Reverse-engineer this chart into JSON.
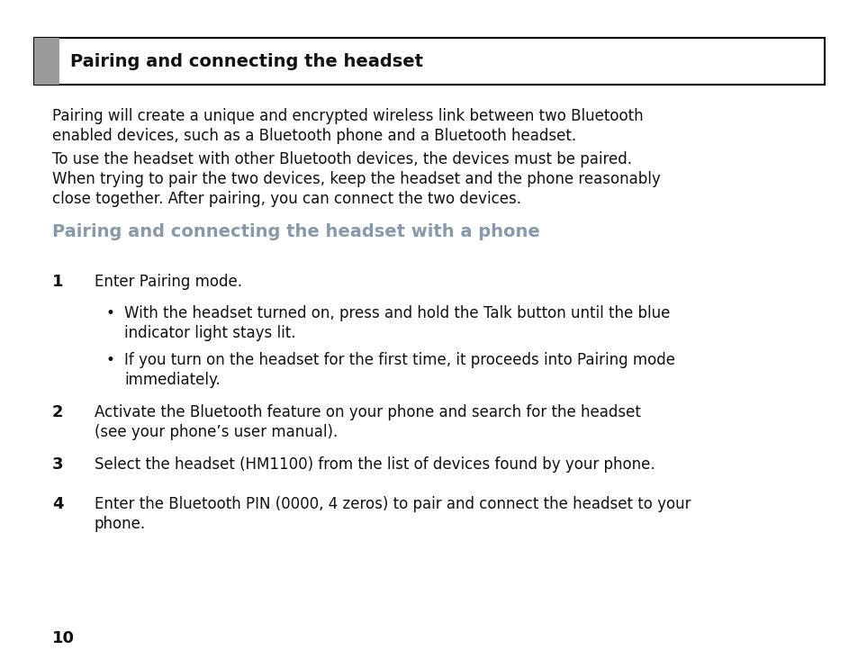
{
  "bg_color": "#ffffff",
  "header_box_color": "#ffffff",
  "header_box_border": "#000000",
  "header_gray_rect": "#999999",
  "header_title": "Pairing and connecting the headset",
  "header_title_fontsize": 14,
  "section_heading": "Pairing and connecting the headset with a phone",
  "section_heading_color": "#8899aa",
  "section_heading_fontsize": 14,
  "para1_line1": "Pairing will create a unique and encrypted wireless link between two Bluetooth",
  "para1_line2": "enabled devices, such as a Bluetooth phone and a Bluetooth headset.",
  "para2_line1": "To use the headset with other Bluetooth devices, the devices must be paired.",
  "para2_line2": "When trying to pair the two devices, keep the headset and the phone reasonably",
  "para2_line3": "close together. After pairing, you can connect the two devices.",
  "body_fontsize": 12,
  "body_color": "#111111",
  "step1_num": "1",
  "step1_text": "Enter Pairing mode.",
  "bullet1_line1": "With the headset turned on, press and hold the Talk button until the blue",
  "bullet1_line2": "indicator light stays lit.",
  "bullet2_line1": "If you turn on the headset for the first time, it proceeds into Pairing mode",
  "bullet2_line2": "immediately.",
  "step2_num": "2",
  "step2_line1": "Activate the Bluetooth feature on your phone and search for the headset",
  "step2_line2": "(see your phone’s user manual).",
  "step3_num": "3",
  "step3_text": "Select the headset (HM1100) from the list of devices found by your phone.",
  "step4_num": "4",
  "step4_line1": "Enter the Bluetooth PIN (0000, 4 zeros) to pair and connect the headset to your",
  "step4_line2": "phone.",
  "page_num": "10",
  "page_num_fontsize": 13,
  "step_num_fontsize": 13
}
